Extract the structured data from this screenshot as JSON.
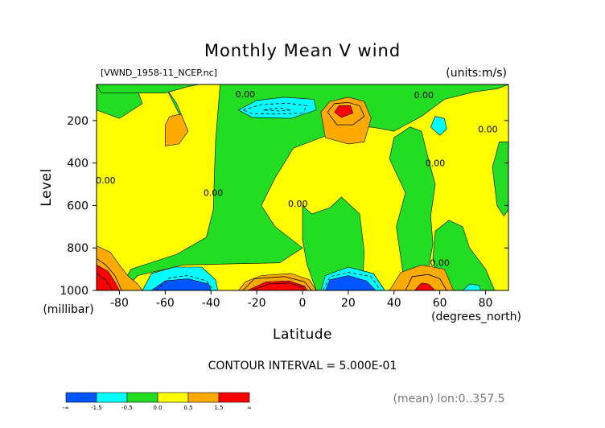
{
  "chart_data": {
    "type": "heatmap",
    "title": "Monthly Mean V wind",
    "dataset": "[VWND_1958-11_NCEP.nc]",
    "units_label": "(units:m/s)",
    "xlabel": "Latitude",
    "x_units": "(degrees_north)",
    "ylabel": "Level",
    "y_units": "(millibar)",
    "xlim": [
      -90,
      90
    ],
    "ylim": [
      1000,
      30
    ],
    "y_inverted": true,
    "x_ticks": [
      -80,
      -60,
      -40,
      -20,
      0,
      20,
      40,
      60,
      80
    ],
    "y_ticks": [
      200,
      400,
      600,
      800,
      1000
    ],
    "contour_interval_label": "CONTOUR INTERVAL = 5.000E-01",
    "footnote": "(mean) lon:0..357.5",
    "contour_label_text": "0.00",
    "colorbar": {
      "colors": [
        "#0055ff",
        "#00ffff",
        "#22dd22",
        "#ffff00",
        "#ffaa00",
        "#ff0000"
      ],
      "labels": [
        "-∞",
        "-1.5",
        "-0.5",
        "0.0",
        "0.5",
        "1.5",
        "∞"
      ]
    },
    "background_color": "#ffff00",
    "regions": [
      {
        "level": "neg-small",
        "color": "#22dd22",
        "points": [
          [
            -60,
            40
          ],
          [
            -50,
            250
          ],
          [
            -55,
            120
          ],
          [
            -60,
            40
          ]
        ]
      },
      {
        "level": "neg-small",
        "color": "#22dd22",
        "points": [
          [
            -90,
            30
          ],
          [
            -90,
            150
          ],
          [
            -80,
            190
          ],
          [
            -70,
            120
          ],
          [
            -72,
            60
          ],
          [
            -80,
            30
          ]
        ]
      },
      {
        "level": "neg-small",
        "color": "#22dd22",
        "points": [
          [
            -36,
            30
          ],
          [
            -38,
            300
          ],
          [
            -39,
            620
          ],
          [
            -42,
            750
          ],
          [
            -55,
            830
          ],
          [
            -75,
            900
          ],
          [
            -80,
            1000
          ],
          [
            -78,
            1000
          ],
          [
            -72,
            930
          ],
          [
            -52,
            880
          ],
          [
            -10,
            870
          ],
          [
            0,
            800
          ],
          [
            -12,
            700
          ],
          [
            -18,
            600
          ],
          [
            -12,
            470
          ],
          [
            -4,
            330
          ],
          [
            18,
            240
          ],
          [
            30,
            230
          ],
          [
            40,
            250
          ],
          [
            52,
            180
          ],
          [
            62,
            100
          ],
          [
            75,
            65
          ],
          [
            85,
            50
          ],
          [
            90,
            30
          ]
        ]
      },
      {
        "level": "neg-small",
        "color": "#22dd22",
        "points": [
          [
            -90,
            30
          ],
          [
            -88,
            70
          ],
          [
            -60,
            70
          ],
          [
            -50,
            40
          ],
          [
            -45,
            30
          ]
        ]
      },
      {
        "level": "neg-small",
        "color": "#22dd22",
        "points": [
          [
            0,
            600
          ],
          [
            4,
            640
          ],
          [
            12,
            610
          ],
          [
            17,
            560
          ],
          [
            25,
            640
          ],
          [
            27,
            820
          ],
          [
            26,
            1000
          ],
          [
            6,
            1000
          ],
          [
            2,
            880
          ],
          [
            0,
            760
          ]
        ]
      },
      {
        "level": "neg-small",
        "color": "#22dd22",
        "points": [
          [
            40,
            280
          ],
          [
            38,
            380
          ],
          [
            45,
            540
          ],
          [
            41,
            700
          ],
          [
            43,
            850
          ],
          [
            45,
            1000
          ],
          [
            60,
            1000
          ],
          [
            55,
            900
          ],
          [
            57,
            780
          ],
          [
            56,
            650
          ],
          [
            58,
            500
          ],
          [
            55,
            380
          ],
          [
            52,
            250
          ],
          [
            47,
            230
          ]
        ]
      },
      {
        "level": "neg-small",
        "color": "#22dd22",
        "points": [
          [
            58,
            720
          ],
          [
            57,
            850
          ],
          [
            60,
            1000
          ],
          [
            84,
            1000
          ],
          [
            80,
            900
          ],
          [
            73,
            800
          ],
          [
            70,
            700
          ],
          [
            64,
            670
          ]
        ]
      },
      {
        "level": "neg-small",
        "color": "#22dd22",
        "points": [
          [
            86,
            300
          ],
          [
            83,
            420
          ],
          [
            85,
            600
          ],
          [
            88,
            650
          ],
          [
            90,
            620
          ],
          [
            90,
            300
          ]
        ]
      },
      {
        "level": "neg-mid",
        "color": "#00ffff",
        "points": [
          [
            -28,
            150
          ],
          [
            -20,
            105
          ],
          [
            -8,
            90
          ],
          [
            5,
            100
          ],
          [
            6,
            150
          ],
          [
            -5,
            190
          ],
          [
            -22,
            185
          ]
        ]
      },
      {
        "level": "neg-mid",
        "color": "#00ffff",
        "points": [
          [
            56,
            230
          ],
          [
            58,
            180
          ],
          [
            62,
            190
          ],
          [
            63,
            240
          ],
          [
            60,
            270
          ]
        ]
      },
      {
        "level": "neg-mid",
        "color": "#00ffff",
        "points": [
          [
            -70,
            1000
          ],
          [
            -66,
            920
          ],
          [
            -56,
            890
          ],
          [
            -44,
            890
          ],
          [
            -38,
            950
          ],
          [
            -37,
            1000
          ]
        ]
      },
      {
        "level": "neg-mid",
        "color": "#00ffff",
        "points": [
          [
            8,
            1000
          ],
          [
            10,
            930
          ],
          [
            20,
            890
          ],
          [
            31,
            920
          ],
          [
            36,
            1000
          ]
        ]
      },
      {
        "level": "neg-mid",
        "color": "#00ffff",
        "points": [
          [
            70,
            1000
          ],
          [
            73,
            970
          ],
          [
            77,
            975
          ],
          [
            78,
            1000
          ]
        ]
      },
      {
        "level": "neg-large",
        "color": "#0055ff",
        "points": [
          [
            -66,
            1000
          ],
          [
            -60,
            955
          ],
          [
            -50,
            945
          ],
          [
            -41,
            970
          ],
          [
            -40,
            1000
          ]
        ]
      },
      {
        "level": "neg-large",
        "color": "#0055ff",
        "points": [
          [
            10,
            1000
          ],
          [
            12,
            950
          ],
          [
            20,
            930
          ],
          [
            28,
            955
          ],
          [
            32,
            1000
          ]
        ]
      },
      {
        "level": "pos-small",
        "color": "#ffaa00",
        "points": [
          [
            -60,
            220
          ],
          [
            -58,
            180
          ],
          [
            -53,
            170
          ],
          [
            -50,
            250
          ],
          [
            -54,
            310
          ],
          [
            -60,
            320
          ]
        ]
      },
      {
        "level": "pos-small",
        "color": "#ffaa00",
        "points": [
          [
            8,
            160
          ],
          [
            12,
            110
          ],
          [
            20,
            90
          ],
          [
            27,
            110
          ],
          [
            30,
            190
          ],
          [
            27,
            300
          ],
          [
            20,
            310
          ],
          [
            10,
            280
          ]
        ]
      },
      {
        "level": "pos-small",
        "color": "#ffaa00",
        "points": [
          [
            -28,
            1000
          ],
          [
            -25,
            960
          ],
          [
            -18,
            930
          ],
          [
            -5,
            920
          ],
          [
            3,
            950
          ],
          [
            6,
            1000
          ]
        ]
      },
      {
        "level": "pos-small",
        "color": "#ffaa00",
        "points": [
          [
            38,
            1000
          ],
          [
            43,
            915
          ],
          [
            52,
            880
          ],
          [
            62,
            900
          ],
          [
            66,
            1000
          ]
        ]
      },
      {
        "level": "pos-small",
        "color": "#ffaa00",
        "points": [
          [
            -90,
            790
          ],
          [
            -84,
            820
          ],
          [
            -80,
            880
          ],
          [
            -76,
            935
          ],
          [
            -72,
            970
          ],
          [
            -70,
            1000
          ],
          [
            -90,
            1000
          ]
        ]
      },
      {
        "level": "pos-large",
        "color": "#ff0000",
        "points": [
          [
            -90,
            880
          ],
          [
            -85,
            910
          ],
          [
            -82,
            960
          ],
          [
            -80,
            1000
          ],
          [
            -90,
            1000
          ]
        ]
      },
      {
        "level": "pos-large",
        "color": "#ff0000",
        "points": [
          [
            -24,
            1000
          ],
          [
            -16,
            960
          ],
          [
            -6,
            955
          ],
          [
            1,
            980
          ],
          [
            2,
            1000
          ]
        ]
      },
      {
        "level": "pos-large",
        "color": "#ff0000",
        "points": [
          [
            14,
            160
          ],
          [
            16,
            130
          ],
          [
            21,
            130
          ],
          [
            22,
            165
          ],
          [
            17,
            185
          ]
        ]
      },
      {
        "level": "pos-large",
        "color": "#ff0000",
        "points": [
          [
            49,
            1000
          ],
          [
            52,
            965
          ],
          [
            55,
            970
          ],
          [
            58,
            1000
          ]
        ]
      }
    ],
    "contour_lines": [
      {
        "dashed": true,
        "points": [
          [
            -26,
            150
          ],
          [
            -18,
            125
          ],
          [
            -7,
            118
          ],
          [
            2,
            130
          ],
          [
            0,
            165
          ],
          [
            -12,
            170
          ],
          [
            -22,
            167
          ],
          [
            -26,
            150
          ]
        ]
      },
      {
        "dashed": true,
        "points": [
          [
            -17,
            150
          ],
          [
            -10,
            140
          ],
          [
            -5,
            150
          ],
          [
            -10,
            155
          ],
          [
            -17,
            150
          ]
        ]
      },
      {
        "dashed": true,
        "points": [
          [
            -64,
            1000
          ],
          [
            -58,
            940
          ],
          [
            -50,
            930
          ],
          [
            -42,
            955
          ],
          [
            -39,
            1000
          ]
        ]
      },
      {
        "dashed": true,
        "points": [
          [
            9,
            1000
          ],
          [
            12,
            935
          ],
          [
            20,
            915
          ],
          [
            30,
            935
          ],
          [
            34,
            1000
          ]
        ]
      },
      {
        "dashed": false,
        "points": [
          [
            11,
            160
          ],
          [
            14,
            120
          ],
          [
            20,
            115
          ],
          [
            25,
            130
          ],
          [
            27,
            180
          ],
          [
            22,
            220
          ],
          [
            15,
            220
          ],
          [
            11,
            160
          ]
        ]
      },
      {
        "dashed": false,
        "points": [
          [
            -26,
            1000
          ],
          [
            -21,
            945
          ],
          [
            -8,
            935
          ],
          [
            1,
            960
          ],
          [
            4,
            1000
          ]
        ]
      },
      {
        "dashed": false,
        "points": [
          [
            -22,
            1000
          ],
          [
            -15,
            970
          ],
          [
            -6,
            965
          ],
          [
            0,
            985
          ],
          [
            1,
            1000
          ]
        ]
      },
      {
        "dashed": false,
        "points": [
          [
            45,
            1000
          ],
          [
            48,
            935
          ],
          [
            55,
            925
          ],
          [
            60,
            945
          ],
          [
            63,
            1000
          ]
        ]
      },
      {
        "dashed": false,
        "points": [
          [
            -90,
            850
          ],
          [
            -86,
            880
          ],
          [
            -82,
            930
          ],
          [
            -79,
            1000
          ]
        ]
      },
      {
        "dashed": false,
        "points": [
          [
            -90,
            920
          ],
          [
            -86,
            950
          ],
          [
            -83,
            1000
          ]
        ]
      }
    ],
    "contour_labels": [
      {
        "x": -25,
        "y": 75
      },
      {
        "x": 53,
        "y": 80
      },
      {
        "x": 81,
        "y": 240
      },
      {
        "x": 58,
        "y": 400
      },
      {
        "x": -86,
        "y": 480
      },
      {
        "x": -39,
        "y": 540
      },
      {
        "x": -2,
        "y": 590
      },
      {
        "x": 60,
        "y": 870
      }
    ]
  }
}
